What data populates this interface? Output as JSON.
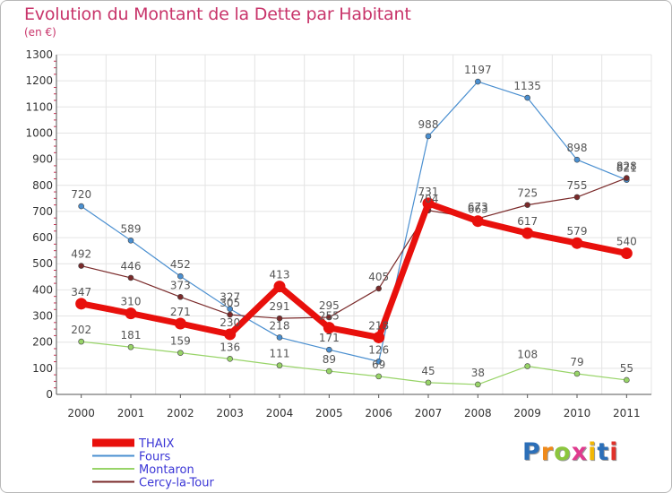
{
  "title": "Evolution du Montant de la Dette par Habitant",
  "subtitle": "(en €)",
  "logo": {
    "text": "Proxiti",
    "letters": [
      {
        "ch": "P",
        "color": "#2c6fb8"
      },
      {
        "ch": "r",
        "color": "#f08a1a"
      },
      {
        "ch": "o",
        "color": "#8cc63e"
      },
      {
        "ch": "x",
        "color": "#e03a8e"
      },
      {
        "ch": "i",
        "color": "#f2b705"
      },
      {
        "ch": "t",
        "color": "#2c6fb8"
      },
      {
        "ch": "i",
        "color": "#e0312a"
      }
    ]
  },
  "chart_data": {
    "type": "line",
    "x": [
      "2000",
      "2001",
      "2002",
      "2003",
      "2004",
      "2005",
      "2006",
      "2007",
      "2008",
      "2009",
      "2010",
      "2011"
    ],
    "ylim": [
      0,
      1300
    ],
    "yticks": [
      0,
      100,
      200,
      300,
      400,
      500,
      600,
      700,
      800,
      900,
      1000,
      1100,
      1200,
      1300
    ],
    "grid": true,
    "legend_position": "bottom-left",
    "series": [
      {
        "name": "THAIX",
        "color": "#e8100c",
        "width": 7,
        "values": [
          347,
          310,
          271,
          230,
          413,
          255,
          218,
          731,
          663,
          617,
          579,
          540
        ]
      },
      {
        "name": "Fours",
        "color": "#4a8fd0",
        "width": 1.2,
        "values": [
          720,
          589,
          452,
          327,
          218,
          171,
          126,
          988,
          1197,
          1135,
          898,
          821
        ]
      },
      {
        "name": "Montaron",
        "color": "#98d468",
        "width": 1.2,
        "values": [
          202,
          181,
          159,
          136,
          111,
          89,
          69,
          45,
          38,
          108,
          79,
          55
        ]
      },
      {
        "name": "Cercy-la-Tour",
        "color": "#7a2a2a",
        "width": 1.2,
        "values": [
          492,
          446,
          373,
          305,
          291,
          295,
          405,
          704,
          673,
          725,
          755,
          828
        ]
      }
    ]
  }
}
